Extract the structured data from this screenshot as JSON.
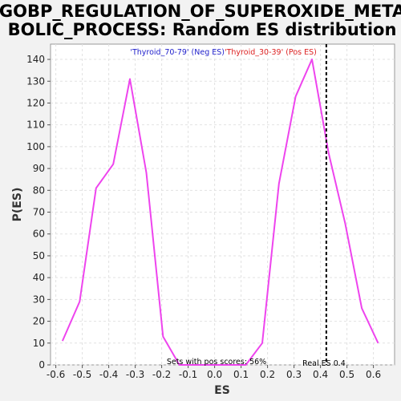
{
  "chart_data": {
    "type": "line",
    "title_line1": "GOBP_REGULATION_OF_SUPEROXIDE_META",
    "title_line2": "BOLIC_PROCESS: Random ES distribution",
    "xlabel": "ES",
    "ylabel": "P(ES)",
    "xlim": [
      -0.62,
      0.68
    ],
    "ylim": [
      0,
      147
    ],
    "x_ticks": [
      "-0.6",
      "-0.5",
      "-0.4",
      "-0.3",
      "-0.2",
      "-0.1",
      "0.0",
      "0.1",
      "0.2",
      "0.3",
      "0.4",
      "0.5",
      "0.6"
    ],
    "x_tick_values": [
      -0.6,
      -0.5,
      -0.4,
      -0.3,
      -0.2,
      -0.1,
      0.0,
      0.1,
      0.2,
      0.3,
      0.4,
      0.5,
      0.6
    ],
    "y_ticks": [
      "0",
      "10",
      "20",
      "30",
      "40",
      "50",
      "60",
      "70",
      "80",
      "90",
      "100",
      "110",
      "120",
      "130",
      "140"
    ],
    "y_tick_values": [
      0,
      10,
      20,
      30,
      40,
      50,
      60,
      70,
      80,
      90,
      100,
      110,
      120,
      130,
      140
    ],
    "grid": true,
    "series": [
      {
        "color": "#ee44ee",
        "x": [
          -0.575,
          -0.51,
          -0.448,
          -0.383,
          -0.32,
          -0.258,
          -0.195,
          -0.133,
          -0.07,
          -0.008,
          0.055,
          0.118,
          0.18,
          0.243,
          0.306,
          0.368,
          0.431,
          0.493,
          0.556,
          0.618
        ],
        "y": [
          11,
          29,
          81,
          92,
          131,
          88,
          13,
          0,
          0,
          0,
          0,
          0,
          10,
          83,
          123,
          140,
          97,
          65,
          26,
          10
        ]
      }
    ],
    "legend_neg": "'Thyroid_70-79' (Neg ES)",
    "legend_pos": "'Thyroid_30-39' (Pos ES)",
    "real_es": {
      "x": 0.422,
      "label": "Real ES 0.4"
    },
    "pos_scores_label": "Sets with pos scores: 56%"
  }
}
